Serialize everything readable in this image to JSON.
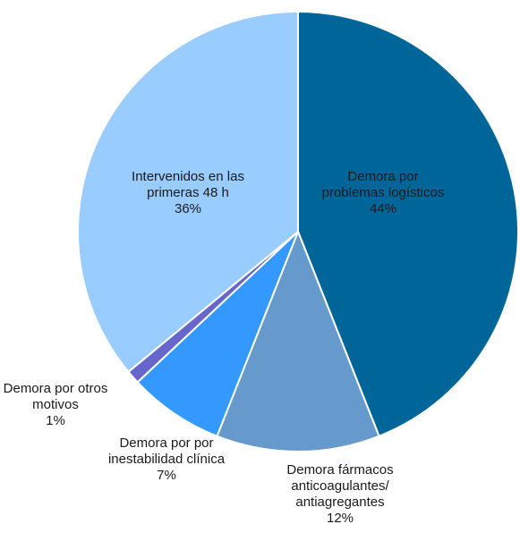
{
  "chart_data": {
    "type": "pie",
    "title": "",
    "slices": [
      {
        "label_lines": [
          "Demora por",
          "problemas logísticos"
        ],
        "percent_text": "44%",
        "value": 44,
        "color": "#006699"
      },
      {
        "label_lines": [
          "Demora fármacos",
          "anticoagulantes/",
          "antiagregantes"
        ],
        "percent_text": "12%",
        "value": 12,
        "color": "#6699cc"
      },
      {
        "label_lines": [
          "Demora por por",
          "inestabilidad clínica"
        ],
        "percent_text": "7%",
        "value": 7,
        "color": "#3399ff"
      },
      {
        "label_lines": [
          "Demora por otros",
          "motivos"
        ],
        "percent_text": "1%",
        "value": 1,
        "color": "#6666cc"
      },
      {
        "label_lines": [
          "Intervenidos en las",
          "primeras 48 h"
        ],
        "percent_text": "36%",
        "value": 36,
        "color": "#99ccff"
      }
    ]
  }
}
